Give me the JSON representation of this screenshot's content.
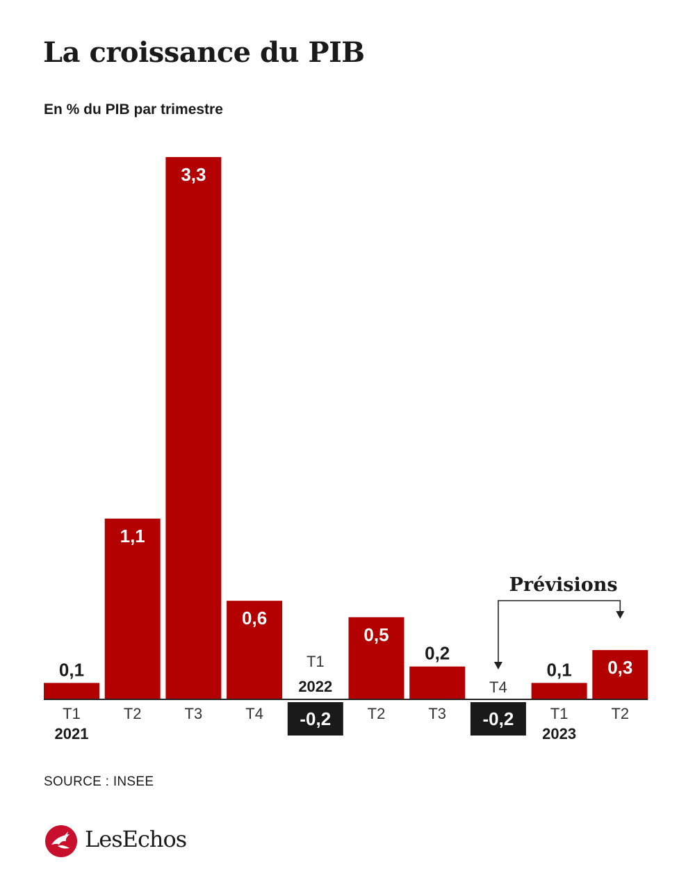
{
  "header": {
    "title": "La croissance du PIB",
    "subtitle": "En % du PIB par trimestre"
  },
  "chart_data": {
    "type": "bar",
    "title": "La croissance du PIB",
    "subtitle": "En % du PIB par trimestre",
    "categories": [
      "T1",
      "T2",
      "T3",
      "T4",
      "T1",
      "T2",
      "T3",
      "T4",
      "T1",
      "T2"
    ],
    "years": [
      "2021",
      "",
      "",
      "",
      "2022",
      "",
      "",
      "",
      "2023",
      ""
    ],
    "values": [
      0.1,
      1.1,
      3.3,
      0.6,
      -0.2,
      0.5,
      0.2,
      -0.2,
      0.1,
      0.3
    ],
    "value_labels": [
      "0,1",
      "1,1",
      "3,3",
      "0,6",
      "-0,2",
      "0,5",
      "0,2",
      "-0,2",
      "0,1",
      "0,3"
    ],
    "ylim": [
      -0.2,
      3.3
    ],
    "annotation": "Prévisions",
    "forecast_indices": [
      7,
      9
    ],
    "colors": {
      "positive": "#b30000",
      "negative_label_bg": "#1a1a1a",
      "text": "#1a1a1a",
      "tick": "#333333"
    }
  },
  "footer": {
    "source": "SOURCE : INSEE",
    "brand": "LesEchos",
    "brand_color": "#c8102e"
  }
}
